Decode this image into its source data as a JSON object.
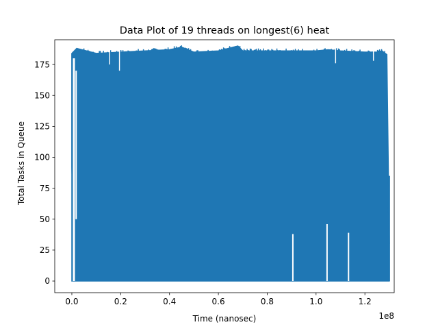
{
  "chart_data": {
    "type": "line",
    "title": "Data Plot of 19 threads on longest(6) heat",
    "xlabel": "Time (nanosec)",
    "ylabel": "Total Tasks in Queue",
    "x_offset_label": "1e8",
    "xlim": [
      -0.07,
      1.32
    ],
    "ylim": [
      -9.4,
      195
    ],
    "xticks": [
      0.0,
      0.2,
      0.4,
      0.6,
      0.8,
      1.0,
      1.2
    ],
    "xtick_labels": [
      "0.0",
      "0.2",
      "0.4",
      "0.6",
      "0.8",
      "1.0",
      "1.2"
    ],
    "yticks": [
      0,
      25,
      50,
      75,
      100,
      125,
      150,
      175
    ],
    "ytick_labels": [
      "0",
      "25",
      "50",
      "75",
      "100",
      "125",
      "150",
      "175"
    ],
    "grid": false,
    "legend": "none",
    "series": [
      {
        "color": "#1f77b4",
        "fill_band": {
          "x": [
            0.0,
            0.02,
            0.1,
            0.2,
            0.3,
            0.4,
            0.45,
            0.5,
            0.6,
            0.68,
            0.7,
            0.8,
            0.9,
            1.0,
            1.05,
            1.1,
            1.2,
            1.25,
            1.27,
            1.29,
            1.3
          ],
          "y_min": [
            0,
            0,
            0,
            0,
            0,
            0,
            0,
            0,
            0,
            0,
            0,
            0,
            0,
            0,
            0,
            0,
            0,
            0,
            0,
            0,
            0
          ],
          "y_max": [
            184,
            188,
            184,
            185,
            186,
            187,
            189,
            185,
            186,
            190,
            186,
            186,
            186,
            186,
            187,
            186,
            185,
            185,
            186,
            183,
            30
          ]
        },
        "initial_segment": {
          "x": [
            0.0,
            0.0,
            0.002,
            0.004,
            0.006,
            0.008,
            0.01,
            0.012,
            0.014,
            0.016,
            0.018
          ],
          "y": [
            184,
            92,
            75,
            72,
            165,
            148,
            70,
            120,
            150,
            55,
            40
          ]
        },
        "gaps": [
          {
            "x": 0.905,
            "top": 38
          },
          {
            "x": 1.045,
            "top": 46
          },
          {
            "x": 1.133,
            "top": 39
          }
        ],
        "dips": [
          {
            "x": 0.155,
            "y": 175
          },
          {
            "x": 0.195,
            "y": 170
          },
          {
            "x": 1.08,
            "y": 176
          },
          {
            "x": 1.235,
            "y": 178
          }
        ],
        "end_tail": {
          "x": [
            1.285,
            1.29,
            1.292,
            1.295,
            1.298,
            1.3
          ],
          "y": [
            162,
            130,
            85,
            55,
            85,
            30
          ]
        }
      }
    ]
  }
}
